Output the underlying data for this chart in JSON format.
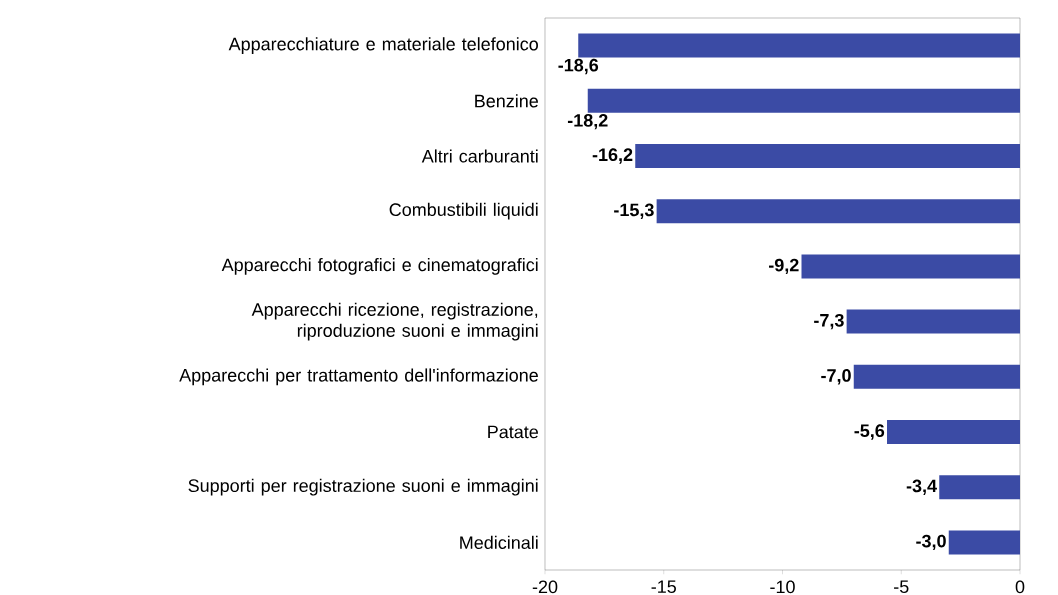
{
  "chart_data": {
    "type": "bar",
    "orientation": "horizontal",
    "categories": [
      "Apparecchiature e materiale telefonico",
      "Benzine",
      "Altri carburanti",
      "Combustibili liquidi",
      "Apparecchi fotografici e cinematografici",
      "Apparecchi ricezione, registrazione, riproduzione suoni e immagini",
      "Apparecchi per trattamento dell'informazione",
      "Patate",
      "Supporti per registrazione suoni e immagini",
      "Medicinali"
    ],
    "values": [
      -18.6,
      -18.2,
      -16.2,
      -15.3,
      -9.2,
      -7.3,
      -7.0,
      -5.6,
      -3.4,
      -3.0
    ],
    "value_labels": [
      "-18,6",
      "-18,2",
      "-16,2",
      "-15,3",
      "-9,2",
      "-7,3",
      "-7,0",
      "-5,6",
      "-3,4",
      "-3,0"
    ],
    "color": "#3b4ba5",
    "xlim": [
      -20,
      0
    ],
    "xticks": [
      -20,
      -15,
      -10,
      -5,
      0
    ],
    "grid": false
  }
}
